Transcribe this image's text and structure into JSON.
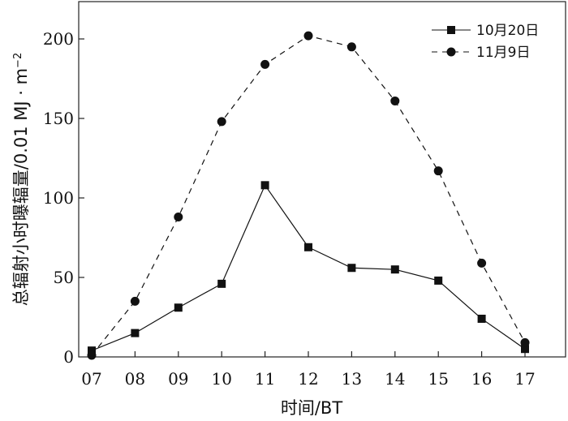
{
  "chart_data": {
    "type": "line",
    "title": "",
    "xlabel": "时间/BT",
    "ylabel": "总辐射小时曝辐量/0.01 MJ · m",
    "ylabel_superscript": "−2",
    "categories": [
      "07",
      "08",
      "09",
      "10",
      "11",
      "12",
      "13",
      "14",
      "15",
      "16",
      "17"
    ],
    "ylim": [
      0,
      225
    ],
    "yticks": [
      0,
      50,
      100,
      150,
      200
    ],
    "grid": false,
    "legend": "top-right",
    "series": [
      {
        "name": "10月20日",
        "marker": "square",
        "line": "solid",
        "values": [
          4,
          15,
          31,
          46,
          108,
          69,
          56,
          55,
          48,
          24,
          5
        ]
      },
      {
        "name": "11月9日",
        "marker": "circle",
        "line": "dashed",
        "values": [
          1,
          35,
          88,
          148,
          184,
          202,
          195,
          161,
          117,
          59,
          9
        ]
      }
    ]
  }
}
